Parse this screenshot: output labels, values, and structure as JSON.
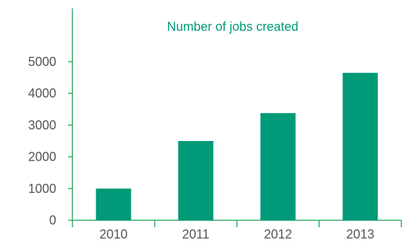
{
  "colors": {
    "accent": "#009a78",
    "axis": "#2eaa68",
    "text": "#555555"
  },
  "chart_data": {
    "type": "bar",
    "title": "Number of jobs created",
    "categories": [
      "2010",
      "2011",
      "2012",
      "2013"
    ],
    "values": [
      1000,
      2500,
      3380,
      4650
    ],
    "y_ticks": [
      0,
      1000,
      2000,
      3000,
      4000,
      5000
    ],
    "ylim": [
      0,
      5000
    ],
    "xlabel": "",
    "ylabel": "",
    "grid": false,
    "legend": "none"
  }
}
